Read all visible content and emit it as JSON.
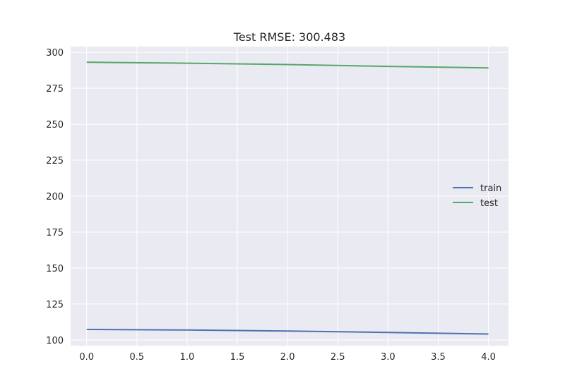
{
  "chart_data": {
    "type": "line",
    "title": "Test RMSE: 300.483",
    "xlabel": "",
    "ylabel": "",
    "xlim": [
      -0.16,
      4.2
    ],
    "ylim": [
      96,
      304
    ],
    "xticks": [
      0.0,
      0.5,
      1.0,
      1.5,
      2.0,
      2.5,
      3.0,
      3.5,
      4.0
    ],
    "xtick_labels": [
      "0.0",
      "0.5",
      "1.0",
      "1.5",
      "2.0",
      "2.5",
      "3.0",
      "3.5",
      "4.0"
    ],
    "yticks": [
      100,
      125,
      150,
      175,
      200,
      225,
      250,
      275,
      300
    ],
    "ytick_labels": [
      "100",
      "125",
      "150",
      "175",
      "200",
      "225",
      "250",
      "275",
      "300"
    ],
    "grid": true,
    "legend_position": "center-right",
    "series": [
      {
        "name": "train",
        "color": "#4c72b0",
        "x": [
          0,
          1,
          2,
          3,
          4
        ],
        "y": [
          107.3,
          106.9,
          106.2,
          105.2,
          104.1
        ]
      },
      {
        "name": "test",
        "color": "#55a868",
        "x": [
          0,
          1,
          2,
          3,
          4
        ],
        "y": [
          293.1,
          292.4,
          291.5,
          290.2,
          289.2
        ]
      }
    ]
  },
  "colors": {
    "plot_background": "#eaeaf2",
    "grid": "#ffffff",
    "text": "#262626"
  }
}
